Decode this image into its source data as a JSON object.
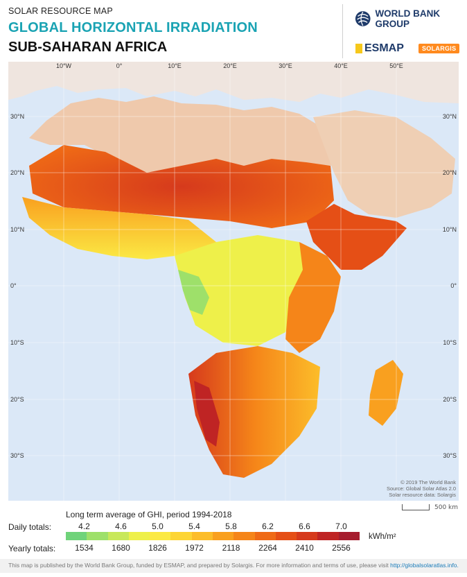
{
  "header": {
    "kicker": "SOLAR RESOURCE MAP",
    "title": "GLOBAL HORIZONTAL IRRADIATION",
    "subtitle": "SUB-SAHARAN AFRICA",
    "logo_world_bank": "WORLD BANK GROUP",
    "logo_esmap": "ESMAP",
    "logo_solargis": "SOLARGIS"
  },
  "map": {
    "lon_labels_top": [
      "10°W",
      "0°",
      "10°E",
      "20°E",
      "30°E",
      "40°E",
      "50°E"
    ],
    "lat_labels": [
      "30°N",
      "20°N",
      "10°N",
      "0°",
      "10°S",
      "20°S",
      "30°S"
    ],
    "credits": [
      "© 2019 The World Bank",
      "Source: Global Solar Atlas 2.0",
      "Solar resource data: Solargis"
    ],
    "scale_label": "500 km"
  },
  "legend": {
    "title": "Long term average of GHI, period 1994-2018",
    "daily_label": "Daily totals:",
    "yearly_label": "Yearly totals:",
    "daily_ticks": [
      "4.2",
      "4.6",
      "5.0",
      "5.4",
      "5.8",
      "6.2",
      "6.6",
      "7.0"
    ],
    "yearly_ticks": [
      "1534",
      "1680",
      "1826",
      "1972",
      "2118",
      "2264",
      "2410",
      "2556"
    ],
    "unit": "kWh/m²",
    "colors": [
      "#6fd37a",
      "#9ee06a",
      "#c8e85a",
      "#eef04a",
      "#fbe944",
      "#fdd535",
      "#fcbd2a",
      "#f9a01f",
      "#f58519",
      "#ef6a16",
      "#e54f16",
      "#d63a1c",
      "#bf2424",
      "#a61d2e"
    ]
  },
  "footer": {
    "text": "This map is published by the World Bank Group, funded by ESMAP, and prepared by Solargis. For more information and terms of use, please visit",
    "link": "http://globalsolaratlas.info."
  }
}
